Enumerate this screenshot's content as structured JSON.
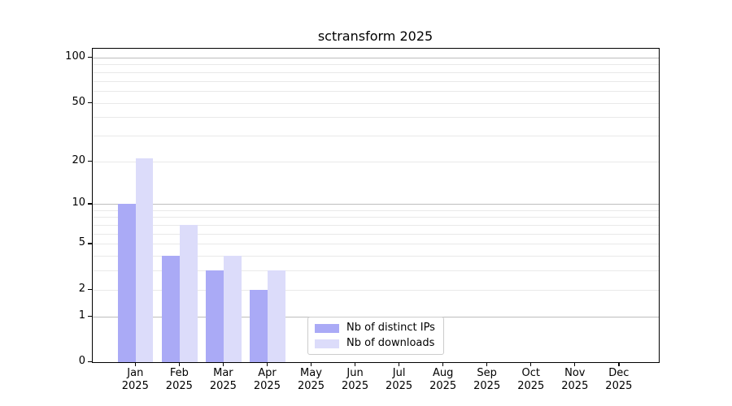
{
  "chart_data": {
    "type": "bar",
    "title": "sctransform 2025",
    "categories": [
      "Jan 2025",
      "Feb 2025",
      "Mar 2025",
      "Apr 2025",
      "May 2025",
      "Jun 2025",
      "Jul 2025",
      "Aug 2025",
      "Sep 2025",
      "Oct 2025",
      "Nov 2025",
      "Dec 2025"
    ],
    "series": [
      {
        "name": "Nb of distinct IPs",
        "color": "#aaaaf6",
        "values": [
          10,
          4,
          3,
          2,
          0,
          0,
          0,
          0,
          0,
          0,
          0,
          0
        ]
      },
      {
        "name": "Nb of downloads",
        "color": "#dcdcfa",
        "values": [
          21,
          7,
          4,
          3,
          0,
          0,
          0,
          0,
          0,
          0,
          0,
          0
        ]
      }
    ],
    "yscale": "log10(value+1)",
    "ylim": [
      0,
      100
    ],
    "yticks": [
      0,
      1,
      2,
      5,
      10,
      20,
      50,
      100
    ],
    "grid_major": [
      1,
      10,
      100
    ],
    "grid_minor": [
      2,
      3,
      4,
      5,
      6,
      7,
      8,
      9,
      20,
      30,
      40,
      50,
      60,
      70,
      80,
      90
    ],
    "grid": "horizontal",
    "legend_position": "lower center"
  },
  "colors": {
    "bar_distinct_ips": "#aaaaf6",
    "bar_downloads": "#dcdcfa",
    "grid_major": "#bdbdbd",
    "grid_minor": "#e9e9e9",
    "axis": "#000000",
    "legend_border": "#cccccc",
    "text": "#000000",
    "background": "#ffffff"
  }
}
